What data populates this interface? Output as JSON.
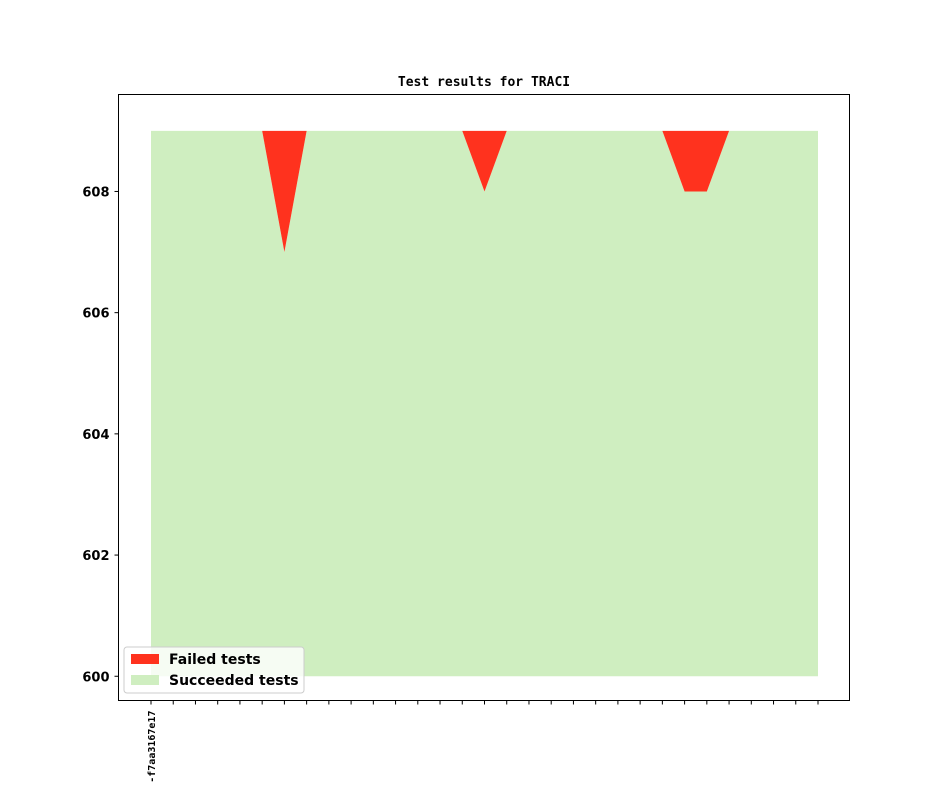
{
  "chart_data": {
    "type": "area",
    "title": "Test results for TRACI",
    "xlabel": "",
    "ylabel": "",
    "ylim": [
      599.6,
      609.6
    ],
    "yticks": [
      600,
      602,
      604,
      606,
      608
    ],
    "x_tick_count": 31,
    "x_tick_labels": [
      "-f7aa3167e17"
    ],
    "total_tests": 609,
    "series": [
      {
        "name": "Succeeded tests",
        "color": "#cfeec0",
        "values": [
          609,
          609,
          609,
          609,
          609,
          609,
          607,
          609,
          609,
          609,
          609,
          609,
          609,
          609,
          609,
          608,
          609,
          609,
          609,
          609,
          609,
          609,
          609,
          609,
          608,
          608,
          609,
          609,
          609,
          609,
          609
        ]
      },
      {
        "name": "Failed tests",
        "color": "#ff321e",
        "values": [
          0,
          0,
          0,
          0,
          0,
          0,
          2,
          0,
          0,
          0,
          0,
          0,
          0,
          0,
          0,
          1,
          0,
          0,
          0,
          0,
          0,
          0,
          0,
          0,
          1,
          1,
          0,
          0,
          0,
          0,
          0
        ]
      }
    ],
    "legend": {
      "position": "lower-left",
      "entries": [
        {
          "label": "Failed tests",
          "color": "#ff321e"
        },
        {
          "label": "Succeeded tests",
          "color": "#cfeec0"
        }
      ]
    },
    "grid": false
  }
}
